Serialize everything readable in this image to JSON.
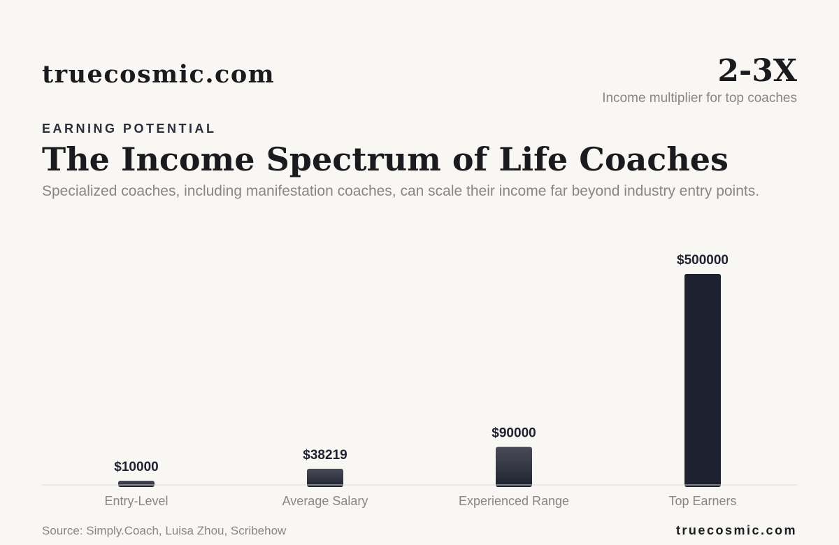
{
  "header": {
    "brand": "truecosmic.com",
    "stat_value": "2-3X",
    "stat_label": "Income multiplier for top coaches"
  },
  "eyebrow": "EARNING POTENTIAL",
  "title": "The Income Spectrum of Life Coaches",
  "subtitle": "Specialized coaches, including manifestation coaches, can scale their income far beyond industry entry points.",
  "chart_data": {
    "type": "bar",
    "title": "",
    "xlabel": "",
    "ylabel": "",
    "categories": [
      "Entry-Level",
      "Average Salary",
      "Experienced Range",
      "Top Earners"
    ],
    "values": [
      10000,
      38219,
      90000,
      500000
    ],
    "value_labels": [
      "$10000",
      "$38219",
      "$90000",
      "$500000"
    ],
    "ylim": [
      0,
      500000
    ],
    "grid": false,
    "colors": {
      "bar_light": "#4a4b57",
      "bar_dark": "#1e2230",
      "baseline": "#dedad4"
    }
  },
  "footer": {
    "source": "Source: Simply.Coach, Luisa Zhou, Scribehow",
    "brand": "truecosmic.com"
  }
}
